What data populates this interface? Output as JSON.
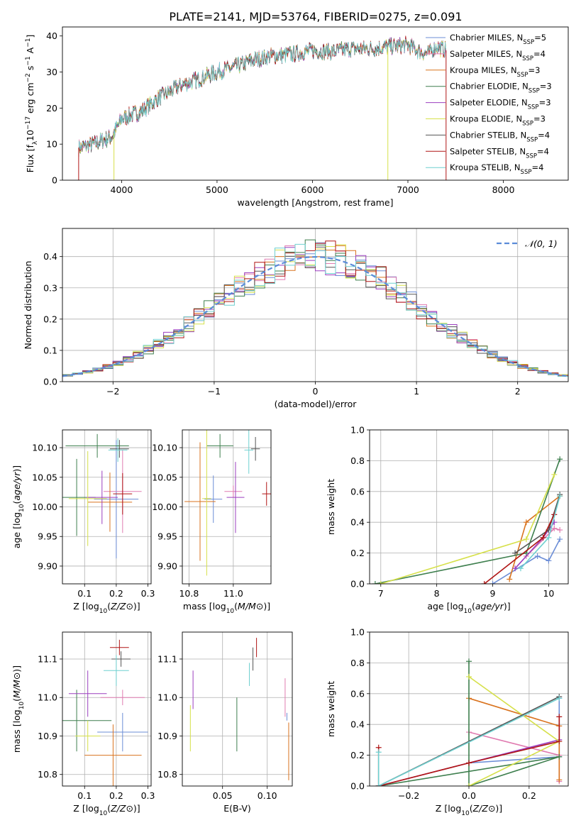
{
  "figure": {
    "title": "PLATE=2141, MJD=53764, FIBERID=0275, z=0.091"
  },
  "models": [
    {
      "label": "Chabrier MILES, N",
      "sub": "SSP",
      "tail": "=5",
      "color": "#6b8dd6"
    },
    {
      "label": "Salpeter MILES, N",
      "sub": "SSP",
      "tail": "=4",
      "color": "#e07bb0"
    },
    {
      "label": "Kroupa MILES, N",
      "sub": "SSP",
      "tail": "=3",
      "color": "#d9731f"
    },
    {
      "label": "Chabrier ELODIE, N",
      "sub": "SSP",
      "tail": "=3",
      "color": "#3e7f4e"
    },
    {
      "label": "Salpeter ELODIE, N",
      "sub": "SSP",
      "tail": "=3",
      "color": "#9b3fbf"
    },
    {
      "label": "Kroupa ELODIE, N",
      "sub": "SSP",
      "tail": "=3",
      "color": "#d6e04a"
    },
    {
      "label": "Chabrier STELIB, N",
      "sub": "SSP",
      "tail": "=4",
      "color": "#555555"
    },
    {
      "label": "Salpeter STELIB, N",
      "sub": "SSP",
      "tail": "=4",
      "color": "#b01515"
    },
    {
      "label": "Kroupa STELIB, N",
      "sub": "SSP",
      "tail": "=4",
      "color": "#6fd0d0"
    }
  ],
  "chart_data": [
    {
      "id": "spectrum",
      "type": "line",
      "title": "PLATE=2141, MJD=53764, FIBERID=0275, z=0.091",
      "xlabel": "wavelength [Angstrom, rest frame]",
      "ylabel_parts": [
        "Flux [f",
        "λ",
        "10",
        "−17",
        " erg cm",
        "−2",
        " s",
        "−1",
        " A",
        "−1",
        "]"
      ],
      "xlim": [
        3380,
        8680
      ],
      "ylim": [
        0,
        42.5
      ],
      "xticks": [
        4000,
        5000,
        6000,
        7000,
        8000
      ],
      "yticks": [
        0,
        10,
        20,
        30,
        40
      ],
      "x_range": [
        3550,
        7400
      ],
      "continuum": [
        [
          3550,
          9
        ],
        [
          3700,
          10
        ],
        [
          3900,
          12
        ],
        [
          4000,
          17
        ],
        [
          4200,
          19
        ],
        [
          4400,
          23
        ],
        [
          4600,
          26
        ],
        [
          4800,
          28
        ],
        [
          5000,
          30
        ],
        [
          5200,
          31.5
        ],
        [
          5400,
          33.5
        ],
        [
          5600,
          34.5
        ],
        [
          5800,
          35
        ],
        [
          6000,
          36
        ],
        [
          6200,
          35.5
        ],
        [
          6400,
          36.5
        ],
        [
          6600,
          36.5
        ],
        [
          6800,
          37
        ],
        [
          7000,
          37.5
        ],
        [
          7100,
          36
        ],
        [
          7200,
          35
        ],
        [
          7300,
          37
        ],
        [
          7400,
          36
        ]
      ],
      "dropouts": [
        {
          "x": 3920,
          "series": 5
        },
        {
          "x": 6790,
          "series": 5
        },
        {
          "x": 7400,
          "series": 7
        },
        {
          "x": 3550,
          "series": 7
        }
      ],
      "grid": false,
      "legend": "upper right"
    },
    {
      "id": "residuals",
      "type": "histogram",
      "xlabel": "(data-model)/error",
      "ylabel": "Normed distribution",
      "xlim": [
        -2.5,
        2.5
      ],
      "ylim": [
        0,
        0.49
      ],
      "xticks": [
        -2,
        -1,
        0,
        1,
        2
      ],
      "xtick_labels": [
        "−2",
        "−1",
        "0",
        "1",
        "2"
      ],
      "yticks": [
        0.0,
        0.1,
        0.2,
        0.3,
        0.4
      ],
      "ytick_labels": [
        "0.0",
        "0.1",
        "0.2",
        "0.3",
        "0.4"
      ],
      "bin_width": 0.1,
      "reference": {
        "name": "𝒩(0, 1)",
        "mean": 0,
        "sigma": 1,
        "color": "#5b8bd8"
      },
      "grid": true,
      "legend": "upper right"
    },
    {
      "id": "age-vs-Z",
      "type": "scatter",
      "xlabel": "Z [log10(Z/Z⊙)]",
      "ylabel": "age  [log10(age/yr)]",
      "xlim": [
        0.03,
        0.31
      ],
      "ylim": [
        9.87,
        10.13
      ],
      "xticks": [
        0.1,
        0.2,
        0.3
      ],
      "xtick_labels": [
        "0.1",
        "0.2",
        "0.3"
      ],
      "yticks": [
        9.9,
        9.95,
        10.0,
        10.05,
        10.1
      ],
      "ytick_labels": [
        "9.90",
        "9.95",
        "10.00",
        "10.05",
        "10.10"
      ],
      "points": [
        {
          "x": 0.2,
          "y": 10.013,
          "xerr": 0.07,
          "yerr": 0.1,
          "series": 0
        },
        {
          "x": 0.22,
          "y": 10.026,
          "xerr": 0.06,
          "yerr": 0.07,
          "series": 1
        },
        {
          "x": 0.18,
          "y": 10.008,
          "xerr": 0.07,
          "yerr": 0.05,
          "series": 2
        },
        {
          "x": 0.075,
          "y": 10.016,
          "xerr": 0.06,
          "yerr": 0.065,
          "series": 3
        },
        {
          "x": 0.155,
          "y": 10.016,
          "xerr": 0.05,
          "yerr": 0.045,
          "series": 4
        },
        {
          "x": 0.11,
          "y": 10.014,
          "xerr": 0.06,
          "yerr": 0.08,
          "series": 5
        },
        {
          "x": 0.21,
          "y": 10.098,
          "xerr": 0.03,
          "yerr": 0.015,
          "series": 6
        },
        {
          "x": 0.22,
          "y": 10.022,
          "xerr": 0.03,
          "yerr": 0.035,
          "series": 7
        },
        {
          "x": 0.205,
          "y": 10.096,
          "xerr": 0.03,
          "yerr": 0.02,
          "series": 8
        },
        {
          "x": 0.14,
          "y": 10.103,
          "xerr": 0.1,
          "yerr": 0.02,
          "series": 3
        }
      ]
    },
    {
      "id": "age-vs-mass",
      "type": "scatter",
      "xlabel": "mass [log10(M/M⊙)]",
      "ylabel": "",
      "xlim": [
        10.77,
        11.17
      ],
      "ylim": [
        9.87,
        10.13
      ],
      "xticks": [
        10.8,
        11.0
      ],
      "xtick_labels": [
        "10.8",
        "11.0"
      ],
      "yticks": [
        9.9,
        9.95,
        10.0,
        10.05,
        10.1
      ],
      "ytick_labels": [
        "9.90",
        "9.95",
        "10.00",
        "10.05",
        "10.10"
      ],
      "points": [
        {
          "x": 10.91,
          "y": 10.013,
          "xerr": 0.04,
          "yerr": 0.04,
          "series": 0
        },
        {
          "x": 11.0,
          "y": 10.026,
          "xerr": 0.04,
          "yerr": 0.01,
          "series": 1
        },
        {
          "x": 10.85,
          "y": 10.009,
          "xerr": 0.07,
          "yerr": 0.1,
          "series": 2
        },
        {
          "x": 10.94,
          "y": 10.103,
          "xerr": 0.06,
          "yerr": 0.02,
          "series": 3
        },
        {
          "x": 11.01,
          "y": 10.016,
          "xerr": 0.04,
          "yerr": 0.06,
          "series": 4
        },
        {
          "x": 10.88,
          "y": 10.014,
          "xerr": 0.02,
          "yerr": 0.13,
          "series": 5
        },
        {
          "x": 11.1,
          "y": 10.098,
          "xerr": 0.02,
          "yerr": 0.02,
          "series": 6
        },
        {
          "x": 11.15,
          "y": 10.022,
          "xerr": 0.02,
          "yerr": 0.02,
          "series": 7
        },
        {
          "x": 11.07,
          "y": 10.096,
          "xerr": 0.02,
          "yerr": 0.04,
          "series": 8
        }
      ]
    },
    {
      "id": "weight-vs-age",
      "type": "line",
      "xlabel": "age  [log10(age/yr)]",
      "ylabel": "mass weight",
      "xlim": [
        6.8,
        10.35
      ],
      "ylim": [
        0,
        1.0
      ],
      "xticks": [
        7,
        8,
        9,
        10
      ],
      "xtick_labels": [
        "7",
        "8",
        "9",
        "10"
      ],
      "yticks": [
        0.0,
        0.2,
        0.4,
        0.6,
        0.8,
        1.0
      ],
      "ytick_labels": [
        "0.0",
        "0.2",
        "0.4",
        "0.6",
        "0.8",
        "1.0"
      ],
      "series": [
        {
          "series": 0,
          "points": [
            [
              9.0,
              0.0
            ],
            [
              9.8,
              0.18
            ],
            [
              10.0,
              0.15
            ],
            [
              10.2,
              0.29
            ]
          ]
        },
        {
          "series": 1,
          "points": [
            [
              9.6,
              0.18
            ],
            [
              10.1,
              0.36
            ],
            [
              10.2,
              0.35
            ]
          ]
        },
        {
          "series": 2,
          "points": [
            [
              9.3,
              0.03
            ],
            [
              9.6,
              0.4
            ],
            [
              10.2,
              0.57
            ]
          ]
        },
        {
          "series": 3,
          "points": [
            [
              6.9,
              0.0
            ],
            [
              9.6,
              0.2
            ],
            [
              10.2,
              0.81
            ]
          ]
        },
        {
          "series": 4,
          "points": [
            [
              9.4,
              0.1
            ],
            [
              9.9,
              0.3
            ],
            [
              10.1,
              0.4
            ]
          ]
        },
        {
          "series": 5,
          "points": [
            [
              7.0,
              0.0
            ],
            [
              9.6,
              0.29
            ],
            [
              10.1,
              0.71
            ]
          ]
        },
        {
          "series": 6,
          "points": [
            [
              9.4,
              0.2
            ],
            [
              10.0,
              0.35
            ],
            [
              10.2,
              0.58
            ]
          ]
        },
        {
          "series": 7,
          "points": [
            [
              8.85,
              0.0
            ],
            [
              9.9,
              0.3
            ],
            [
              10.1,
              0.45
            ]
          ]
        },
        {
          "series": 8,
          "points": [
            [
              9.5,
              0.1
            ],
            [
              10.0,
              0.3
            ],
            [
              10.2,
              0.57
            ]
          ]
        }
      ]
    },
    {
      "id": "mass-vs-Z",
      "type": "scatter",
      "xlabel": "Z [log10(Z/Z⊙)]",
      "ylabel": "mass [log10(M/M⊙)]",
      "xlim": [
        0.03,
        0.31
      ],
      "ylim": [
        10.77,
        11.17
      ],
      "xticks": [
        0.1,
        0.2,
        0.3
      ],
      "xtick_labels": [
        "0.1",
        "0.2",
        "0.3"
      ],
      "yticks": [
        10.8,
        10.9,
        11.0,
        11.1
      ],
      "ytick_labels": [
        "10.8",
        "10.9",
        "11.0",
        "11.1"
      ],
      "points": [
        {
          "x": 0.22,
          "y": 10.91,
          "xerr": 0.08,
          "yerr": 0.05,
          "series": 0
        },
        {
          "x": 0.22,
          "y": 11.0,
          "xerr": 0.07,
          "yerr": 0.02,
          "series": 1
        },
        {
          "x": 0.19,
          "y": 10.85,
          "xerr": 0.09,
          "yerr": 0.08,
          "series": 2
        },
        {
          "x": 0.075,
          "y": 10.94,
          "xerr": 0.11,
          "yerr": 0.08,
          "series": 3
        },
        {
          "x": 0.11,
          "y": 11.01,
          "xerr": 0.06,
          "yerr": 0.06,
          "series": 4
        },
        {
          "x": 0.11,
          "y": 10.9,
          "xerr": 0.04,
          "yerr": 0.04,
          "series": 5
        },
        {
          "x": 0.215,
          "y": 11.1,
          "xerr": 0.03,
          "yerr": 0.02,
          "series": 6
        },
        {
          "x": 0.21,
          "y": 11.13,
          "xerr": 0.03,
          "yerr": 0.02,
          "series": 7
        },
        {
          "x": 0.2,
          "y": 11.07,
          "xerr": 0.04,
          "yerr": 0.04,
          "series": 8
        }
      ]
    },
    {
      "id": "mass-vs-EBV",
      "type": "scatter",
      "xlabel": "E(B-V)",
      "ylabel": "",
      "xlim": [
        0.005,
        0.128
      ],
      "ylim": [
        10.77,
        11.17
      ],
      "xticks": [
        0.05,
        0.1
      ],
      "xtick_labels": [
        "0.05",
        "0.10"
      ],
      "yticks": [
        10.8,
        10.9,
        11.0,
        11.1
      ],
      "ytick_labels": [
        "10.8",
        "10.9",
        "11.0",
        "11.1"
      ],
      "points": [
        {
          "x": 0.122,
          "y": 10.95,
          "xerr": 0.0,
          "yerr": 0.01,
          "series": 0
        },
        {
          "x": 0.12,
          "y": 11.0,
          "xerr": 0.0,
          "yerr": 0.05,
          "series": 1
        },
        {
          "x": 0.124,
          "y": 10.86,
          "xerr": 0.0,
          "yerr": 0.075,
          "series": 2
        },
        {
          "x": 0.066,
          "y": 10.93,
          "xerr": 0.0,
          "yerr": 0.07,
          "series": 3
        },
        {
          "x": 0.017,
          "y": 11.02,
          "xerr": 0.0,
          "yerr": 0.05,
          "series": 4
        },
        {
          "x": 0.014,
          "y": 10.92,
          "xerr": 0.0,
          "yerr": 0.06,
          "series": 5
        },
        {
          "x": 0.084,
          "y": 11.1,
          "xerr": 0.0,
          "yerr": 0.03,
          "series": 6
        },
        {
          "x": 0.088,
          "y": 11.13,
          "xerr": 0.0,
          "yerr": 0.025,
          "series": 7
        },
        {
          "x": 0.08,
          "y": 11.06,
          "xerr": 0.0,
          "yerr": 0.03,
          "series": 8
        }
      ]
    },
    {
      "id": "weight-vs-Z",
      "type": "line",
      "xlabel": "Z [log10(Z/Z⊙)]",
      "ylabel": "mass weight",
      "xlim": [
        -0.33,
        0.33
      ],
      "ylim": [
        0,
        1.0
      ],
      "xticks": [
        -0.2,
        0.0,
        0.2
      ],
      "xtick_labels": [
        "−0.2",
        "0.0",
        "0.2"
      ],
      "yticks": [
        0.0,
        0.2,
        0.4,
        0.6,
        0.8,
        1.0
      ],
      "ytick_labels": [
        "0.0",
        "0.2",
        "0.4",
        "0.6",
        "0.8",
        "1.0"
      ],
      "series": [
        {
          "series": 0,
          "points": [
            [
              0.0,
              0.15
            ],
            [
              0.3,
              0.19
            ],
            [
              0.3,
              0.57
            ]
          ]
        },
        {
          "series": 1,
          "points": [
            [
              0.0,
              0.35
            ],
            [
              0.3,
              0.2
            ],
            [
              0.3,
              0.03
            ]
          ]
        },
        {
          "series": 2,
          "points": [
            [
              0.0,
              0.57
            ],
            [
              0.3,
              0.39
            ],
            [
              0.3,
              0.04
            ]
          ]
        },
        {
          "series": 3,
          "points": [
            [
              -0.3,
              0.0
            ],
            [
              0.3,
              0.19
            ],
            [
              0.0,
              0.0
            ],
            [
              0.0,
              0.81
            ]
          ]
        },
        {
          "series": 4,
          "points": [
            [
              -0.3,
              0.0
            ],
            [
              0.3,
              0.3
            ]
          ]
        },
        {
          "series": 5,
          "points": [
            [
              0.0,
              0.0
            ],
            [
              0.3,
              0.29
            ],
            [
              0.0,
              0.71
            ]
          ]
        },
        {
          "series": 6,
          "points": [
            [
              -0.3,
              0.0
            ],
            [
              0.3,
              0.58
            ]
          ]
        },
        {
          "series": 7,
          "points": [
            [
              -0.3,
              0.25
            ],
            [
              -0.3,
              0.0
            ],
            [
              0.0,
              0.15
            ],
            [
              0.3,
              0.29
            ],
            [
              0.3,
              0.45
            ]
          ]
        },
        {
          "series": 8,
          "points": [
            [
              -0.3,
              0.22
            ],
            [
              -0.3,
              0.0
            ],
            [
              0.3,
              0.57
            ]
          ]
        }
      ]
    }
  ]
}
